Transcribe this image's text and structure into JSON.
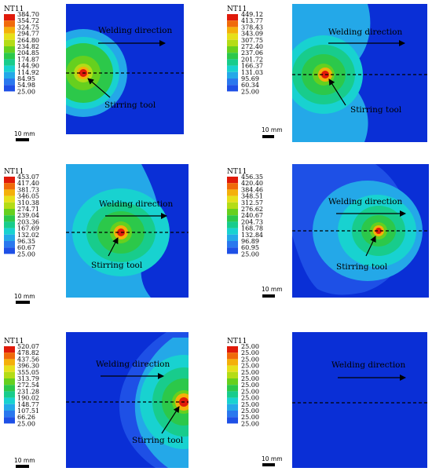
{
  "colors": {
    "background_field": "#0a2fd6",
    "scale": [
      "#0a2fd6",
      "#1e50e6",
      "#2a78ee",
      "#24a8e8",
      "#18d2d0",
      "#18cc8c",
      "#2cc84a",
      "#66d01e",
      "#b4dc16",
      "#e6e01a",
      "#f4b00a",
      "#f06a0a",
      "#e01a0a"
    ]
  },
  "legend_title": "NT11",
  "labels": {
    "welding_direction": "Welding direction",
    "stirring_tool": "Stirring tool",
    "scale_bar": "10 mm"
  },
  "panels": [
    {
      "id": "a",
      "legend_values": [
        "384.70",
        "354.72",
        "324.75",
        "294.77",
        "264.80",
        "234.82",
        "204.85",
        "174.87",
        "144.90",
        "114.92",
        "84.95",
        "54.98",
        "25.00"
      ],
      "show_stirring_tool": true
    },
    {
      "id": "b",
      "legend_values": [
        "449.12",
        "413.77",
        "378.43",
        "343.09",
        "307.75",
        "272.40",
        "237.06",
        "201.72",
        "166.37",
        "131.03",
        "95.69",
        "60.34",
        "25.00"
      ],
      "show_stirring_tool": true
    },
    {
      "id": "c",
      "legend_values": [
        "453.07",
        "417.40",
        "381.73",
        "346.05",
        "310.38",
        "274.71",
        "239.04",
        "203.36",
        "167.69",
        "132.02",
        "96.35",
        "60.67",
        "25.00"
      ],
      "show_stirring_tool": true
    },
    {
      "id": "d",
      "legend_values": [
        "456.35",
        "420.40",
        "384.46",
        "348.51",
        "312.57",
        "276.62",
        "240.67",
        "204.73",
        "168.78",
        "132.84",
        "96.89",
        "60.95",
        "25.00"
      ],
      "show_stirring_tool": true
    },
    {
      "id": "e",
      "legend_values": [
        "520.07",
        "478.82",
        "437.56",
        "396.30",
        "355.05",
        "313.79",
        "272.54",
        "231.28",
        "190.02",
        "148.77",
        "107.51",
        "66.26",
        "25.00"
      ],
      "show_stirring_tool": true
    },
    {
      "id": "f",
      "legend_values": [
        "25.00",
        "25.00",
        "25.00",
        "25.00",
        "25.00",
        "25.00",
        "25.00",
        "25.00",
        "25.00",
        "25.00",
        "25.00",
        "25.00",
        "25.00"
      ],
      "show_stirring_tool": false
    }
  ]
}
